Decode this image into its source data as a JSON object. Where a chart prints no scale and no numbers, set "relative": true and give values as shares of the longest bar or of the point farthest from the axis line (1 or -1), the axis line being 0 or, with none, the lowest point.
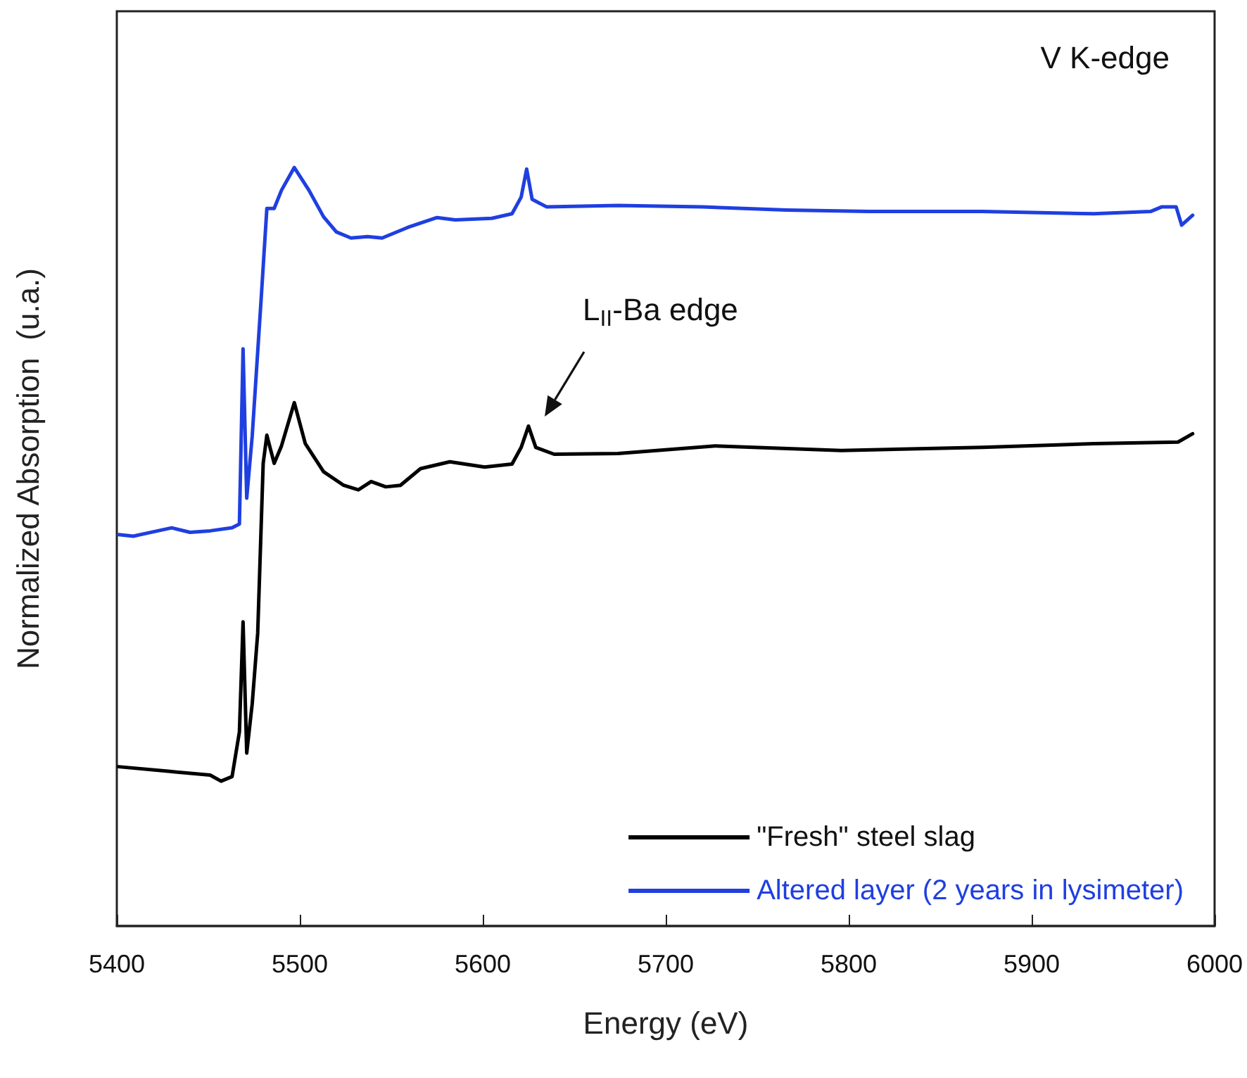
{
  "chart_data": {
    "type": "line",
    "xlabel": "Energy (eV)",
    "ylabel": "Normalized Absorption  (u.a.)",
    "relative": true,
    "xlim": [
      5400,
      6000
    ],
    "xticks": [
      5400,
      5500,
      5600,
      5700,
      5800,
      5900,
      6000
    ],
    "grid": false,
    "legend": "bottom right",
    "marker": "none",
    "line_style": "solid",
    "annotations": [
      "V K-edge",
      "L$_{II}$-Ba edge"
    ],
    "series": [
      {
        "name": "\"Fresh\" steel slag",
        "color": "#000000",
        "x": [
          5401,
          5428,
          5451,
          5457,
          5463,
          5467,
          5469,
          5471,
          5474,
          5477,
          5480,
          5482,
          5486,
          5490,
          5497,
          5503,
          5513,
          5524,
          5532,
          5539,
          5547,
          5555,
          5566,
          5582,
          5601,
          5616,
          5621,
          5625,
          5629,
          5639,
          5674,
          5727,
          5796,
          5873,
          5934,
          5980,
          5988
        ],
        "values": [
          0.21,
          0.204,
          0.199,
          0.191,
          0.197,
          0.256,
          0.401,
          0.228,
          0.293,
          0.386,
          0.61,
          0.647,
          0.61,
          0.633,
          0.69,
          0.636,
          0.599,
          0.581,
          0.575,
          0.586,
          0.579,
          0.581,
          0.603,
          0.612,
          0.605,
          0.609,
          0.631,
          0.659,
          0.631,
          0.622,
          0.623,
          0.633,
          0.627,
          0.631,
          0.636,
          0.638,
          0.649
        ]
      },
      {
        "name": "Altered layer (2 years in lysimeter)",
        "color": "#1f3fe0",
        "x": [
          5401,
          5409,
          5430,
          5440,
          5451,
          5463,
          5467,
          5469,
          5471,
          5474,
          5479,
          5482,
          5486,
          5490,
          5497,
          5505,
          5513,
          5520,
          5528,
          5537,
          5545,
          5559,
          5575,
          5585,
          5605,
          5616,
          5621,
          5624,
          5627,
          5635,
          5674,
          5720,
          5766,
          5811,
          5873,
          5934,
          5965,
          5971,
          5979,
          5982,
          5988
        ],
        "values": [
          0.516,
          0.514,
          0.525,
          0.519,
          0.521,
          0.525,
          0.53,
          0.761,
          0.564,
          0.646,
          0.831,
          0.946,
          0.946,
          0.97,
          1.0,
          0.97,
          0.935,
          0.915,
          0.907,
          0.909,
          0.907,
          0.921,
          0.934,
          0.931,
          0.933,
          0.939,
          0.961,
          0.998,
          0.958,
          0.948,
          0.95,
          0.948,
          0.944,
          0.942,
          0.942,
          0.939,
          0.942,
          0.948,
          0.948,
          0.924,
          0.937
        ]
      }
    ]
  }
}
